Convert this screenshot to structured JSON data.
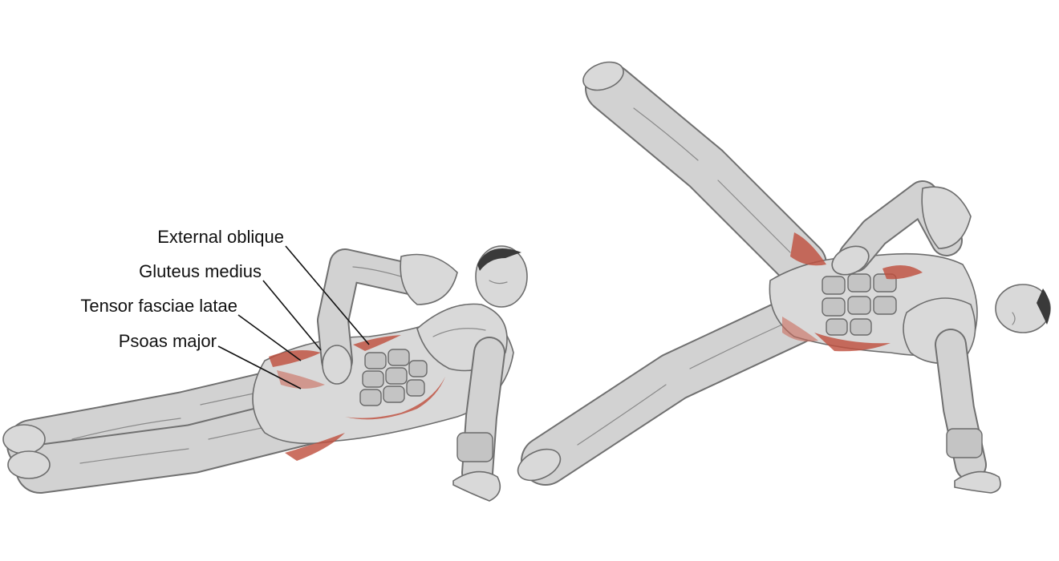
{
  "labels": [
    {
      "id": "external-oblique",
      "text": "External oblique"
    },
    {
      "id": "gluteus-medius",
      "text": "Gluteus medius"
    },
    {
      "id": "tensor-fasciae-latae",
      "text": "Tensor fasciae latae"
    },
    {
      "id": "psoas-major",
      "text": "Psoas major"
    }
  ],
  "colors": {
    "highlight": "#c0503f",
    "body": "#d9d9d9",
    "outline": "#6d6d6d"
  }
}
